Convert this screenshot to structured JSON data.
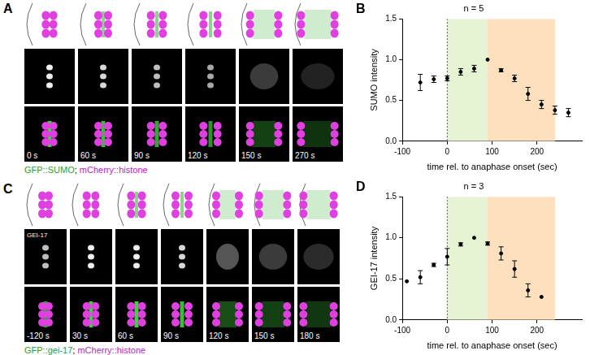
{
  "panels": [
    {
      "label": "A",
      "times": [
        "0 s",
        "60 s",
        "90 s",
        "120 s",
        "150 s",
        "270 s"
      ],
      "caption": [
        {
          "text": "GFP::SUMO",
          "color": "#2e9e2e"
        },
        {
          "text": "; ",
          "color": "#000000"
        },
        {
          "text": "mCherry::histone",
          "color": "#c020c0"
        }
      ]
    },
    {
      "label": "C",
      "image_label": "GEI-17",
      "times": [
        "-120 s",
        "30 s",
        "60 s",
        "90 s",
        "120 s",
        "150 s",
        "180 s"
      ],
      "caption": [
        {
          "text": "GFP::gei-17",
          "color": "#2e9e2e"
        },
        {
          "text": "; ",
          "color": "#000000"
        },
        {
          "text": "mCherry::histone",
          "color": "#c020c0"
        }
      ]
    }
  ],
  "chart_data": [
    {
      "panel": "B",
      "type": "scatter",
      "title": "n = 5",
      "x_label": "time rel. to anaphase onset (sec)",
      "y_label": "SUMO intensity",
      "x": [
        -60,
        -30,
        0,
        30,
        60,
        90,
        120,
        150,
        180,
        210,
        240,
        270
      ],
      "values": [
        0.72,
        0.76,
        0.77,
        0.85,
        0.89,
        1.0,
        0.87,
        0.77,
        0.58,
        0.45,
        0.38,
        0.35
      ],
      "errors": [
        0.1,
        0.04,
        0.03,
        0.04,
        0.04,
        0,
        0.02,
        0.04,
        0.08,
        0.05,
        0.05,
        0.05
      ],
      "color": "#000000",
      "marker": "circle",
      "xlim": [
        -100,
        300
      ],
      "xticks": [
        -100,
        0,
        100,
        200
      ],
      "ylim": [
        0,
        1.5
      ],
      "yticks": [
        {
          "value": 0,
          "label": "0.0"
        },
        {
          "value": 0.5,
          "label": "0.5"
        },
        {
          "value": 1,
          "label": "1.0"
        },
        {
          "value": 1.5,
          "label": "1.5"
        }
      ],
      "regions": [
        {
          "start": 0,
          "end": 90,
          "color": "#e6f4d3"
        },
        {
          "start": 90,
          "end": 240,
          "color": "#fde0bd"
        }
      ],
      "vline": 0,
      "grid": false
    },
    {
      "panel": "D",
      "type": "scatter",
      "title": "n = 3",
      "x_label": "time rel. to anaphase onset (sec)",
      "y_label": "GEI-17 intensity",
      "x": [
        -90,
        -60,
        -30,
        0,
        30,
        60,
        90,
        120,
        150,
        180,
        210
      ],
      "values": [
        0.47,
        0.52,
        0.67,
        0.77,
        0.92,
        1.0,
        0.93,
        0.81,
        0.62,
        0.36,
        0.28
      ],
      "errors": [
        0,
        0.08,
        0.02,
        0.1,
        0.02,
        0,
        0.02,
        0.08,
        0.1,
        0.08,
        0
      ],
      "color": "#000000",
      "marker": "circle",
      "xlim": [
        -100,
        300
      ],
      "xticks": [
        -100,
        0,
        100,
        200
      ],
      "ylim": [
        0,
        1.5
      ],
      "yticks": [
        {
          "value": 0,
          "label": "0.0"
        },
        {
          "value": 0.5,
          "label": "0.5"
        },
        {
          "value": 1,
          "label": "1.0"
        },
        {
          "value": 1.5,
          "label": "1.5"
        }
      ],
      "regions": [
        {
          "start": 0,
          "end": 90,
          "color": "#e6f4d3"
        },
        {
          "start": 90,
          "end": 240,
          "color": "#fde0bd"
        }
      ],
      "vline": 0,
      "grid": false
    }
  ]
}
